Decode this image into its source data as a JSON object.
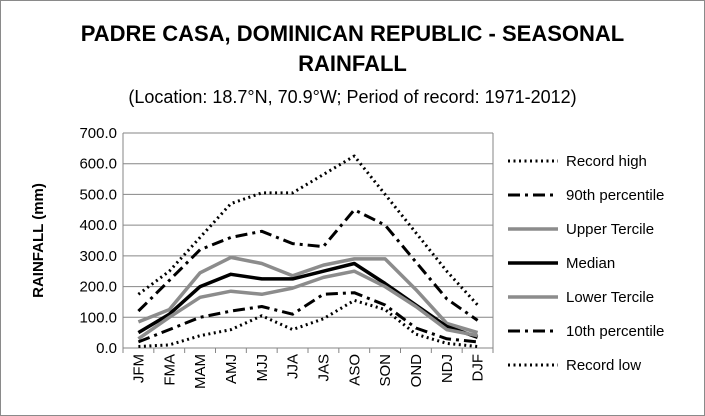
{
  "chart_data": {
    "type": "line",
    "title_line1": "PADRE CASA, DOMINICAN REPUBLIC - SEASONAL",
    "title_line2": "RAINFALL",
    "subtitle": "(Location: 18.7°N, 70.9°W; Period of record: 1971-2012)",
    "xlabel": "",
    "ylabel": "RAINFALL (mm)",
    "categories": [
      "JFM",
      "FMA",
      "MAM",
      "AMJ",
      "MJJ",
      "JJA",
      "JAS",
      "ASO",
      "SON",
      "OND",
      "NDJ",
      "DJF"
    ],
    "yticks": [
      "0.0",
      "100.0",
      "200.0",
      "300.0",
      "400.0",
      "500.0",
      "600.0",
      "700.0"
    ],
    "ylim": [
      0,
      700
    ],
    "grid": true,
    "legend_position": "right",
    "series": [
      {
        "name": "Record high",
        "color": "#000000",
        "style": "dotted",
        "values": [
          175,
          250,
          360,
          470,
          505,
          505,
          565,
          625,
          500,
          375,
          250,
          140
        ]
      },
      {
        "name": "90th percentile",
        "color": "#000000",
        "style": "dashdot",
        "values": [
          120,
          220,
          320,
          360,
          380,
          340,
          330,
          450,
          400,
          280,
          160,
          90
        ]
      },
      {
        "name": "Upper Tercile",
        "color": "#8c8c8c",
        "style": "solid",
        "values": [
          85,
          125,
          245,
          295,
          275,
          235,
          270,
          290,
          290,
          190,
          80,
          50
        ]
      },
      {
        "name": "Median",
        "color": "#000000",
        "style": "solid",
        "values": [
          50,
          110,
          200,
          240,
          225,
          225,
          250,
          275,
          210,
          140,
          70,
          35
        ]
      },
      {
        "name": "Lower Tercile",
        "color": "#8c8c8c",
        "style": "solid",
        "values": [
          30,
          100,
          165,
          185,
          175,
          195,
          230,
          250,
          200,
          135,
          60,
          40
        ]
      },
      {
        "name": "10th percentile",
        "color": "#000000",
        "style": "dashdot",
        "values": [
          20,
          60,
          100,
          120,
          135,
          110,
          175,
          180,
          140,
          65,
          30,
          20
        ]
      },
      {
        "name": "Record low",
        "color": "#000000",
        "style": "dotted",
        "values": [
          5,
          10,
          40,
          60,
          105,
          60,
          95,
          155,
          125,
          45,
          15,
          5
        ]
      }
    ]
  }
}
